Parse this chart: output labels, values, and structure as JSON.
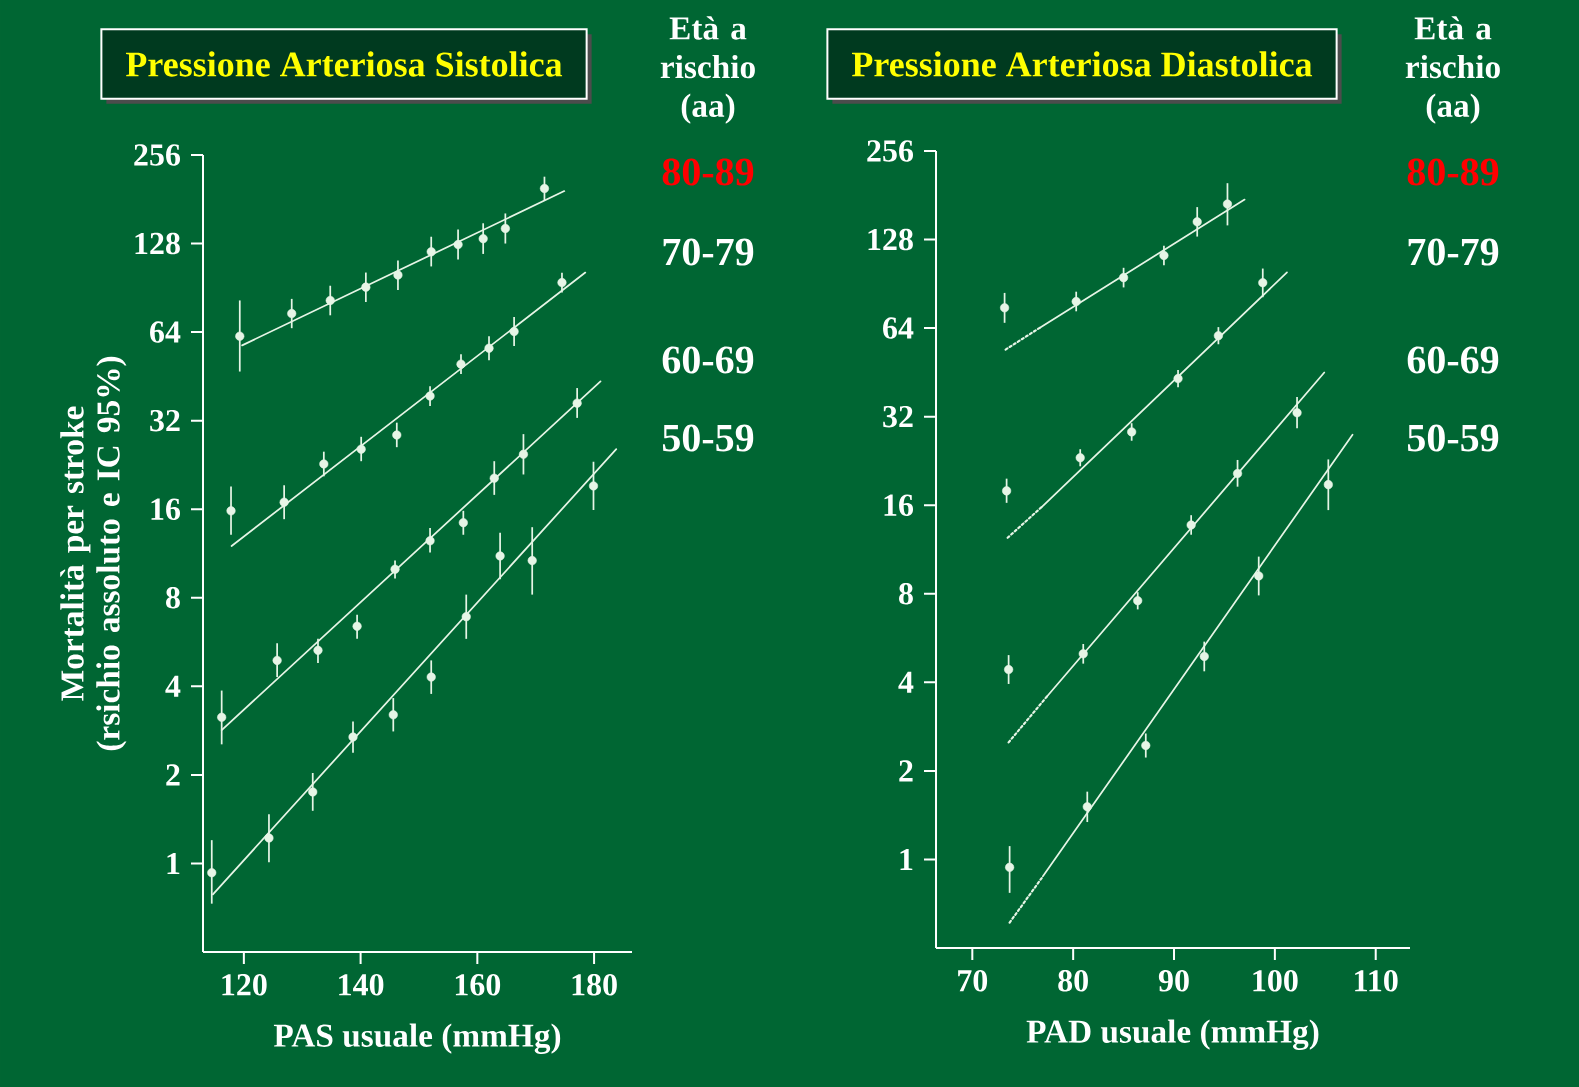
{
  "chart_data": [
    {
      "type": "scatter",
      "title": "Pressione Arteriosa Sistolica",
      "xlabel": "PAS usuale (mmHg)",
      "ylabel": "Mortalità per stroke (rsichio assoluto  e IC 95%)",
      "legend_title": "Età a rischio (aa)",
      "legend": "right",
      "log": "y",
      "xlim": [
        113,
        186.5
      ],
      "ylim": [
        0.5,
        256
      ],
      "xticks": [
        120,
        140,
        160,
        180
      ],
      "yticks": [
        1,
        2,
        4,
        8,
        16,
        32,
        64,
        128,
        256
      ],
      "series": [
        {
          "name": "80-89",
          "color": "#e6f5e6",
          "marker": "circle",
          "x": [
            119.3,
            128.2,
            134.8,
            140.9,
            146.4,
            152.1,
            156.7,
            161,
            164.8,
            171.5
          ],
          "values": [
            62,
            74,
            82,
            91,
            100,
            120,
            127,
            133,
            144,
            197
          ],
          "errors": [
            [
              47,
              82
            ],
            [
              66,
              83
            ],
            [
              73,
              92
            ],
            [
              81,
              102
            ],
            [
              89,
              112
            ],
            [
              107,
              135
            ],
            [
              113,
              143
            ],
            [
              118,
              150
            ],
            [
              128,
              162
            ],
            [
              179,
              216
            ]
          ]
        },
        {
          "name": "70-79",
          "color": "#e6f5e6",
          "marker": "circle",
          "x": [
            117.8,
            126.9,
            133.7,
            140.1,
            146.2,
            151.9,
            157.2,
            162,
            166.3,
            174.5
          ],
          "values": [
            15.8,
            16.9,
            22.8,
            25.6,
            28.6,
            38.8,
            49.8,
            56.4,
            64.3,
            94.3
          ],
          "errors": [
            [
              13.1,
              19.1
            ],
            [
              14.8,
              19.3
            ],
            [
              20.7,
              25.1
            ],
            [
              23.3,
              28.2
            ],
            [
              26,
              31.5
            ],
            [
              35.9,
              41.9
            ],
            [
              46.1,
              53.8
            ],
            [
              51.3,
              62
            ],
            [
              57.4,
              72
            ],
            [
              87.3,
              101.8
            ]
          ]
        },
        {
          "name": "60-69",
          "color": "#e6f5e6",
          "marker": "circle",
          "x": [
            116.2,
            125.7,
            132.7,
            139.4,
            145.9,
            151.9,
            157.6,
            162.9,
            167.9,
            177.1
          ],
          "values": [
            3.14,
            4.9,
            5.3,
            6.4,
            10.0,
            12.5,
            14.4,
            20.4,
            24.6,
            36.7
          ],
          "errors": [
            [
              2.54,
              3.87
            ],
            [
              4.3,
              5.6
            ],
            [
              4.8,
              5.8
            ],
            [
              5.8,
              7.0
            ],
            [
              9.3,
              10.7
            ],
            [
              11.4,
              13.8
            ],
            [
              13.1,
              15.8
            ],
            [
              17.9,
              23.3
            ],
            [
              21.0,
              28.8
            ],
            [
              32.7,
              41.3
            ]
          ]
        },
        {
          "name": "50-59",
          "color": "#e6f5e6",
          "marker": "circle",
          "x": [
            114.5,
            124.3,
            131.8,
            138.7,
            145.6,
            152.1,
            158.1,
            163.9,
            169.4,
            179.9
          ],
          "values": [
            0.93,
            1.22,
            1.75,
            2.69,
            3.2,
            4.3,
            6.9,
            11.1,
            10.7,
            19.2
          ],
          "errors": [
            [
              0.73,
              1.2
            ],
            [
              1.01,
              1.47
            ],
            [
              1.51,
              2.03
            ],
            [
              2.38,
              3.04
            ],
            [
              2.81,
              3.65
            ],
            [
              3.77,
              4.9
            ],
            [
              5.8,
              8.2
            ],
            [
              9.25,
              13.3
            ],
            [
              8.2,
              13.9
            ],
            [
              15.9,
              23.2
            ]
          ]
        },
        {
          "type": "line",
          "color": "#e6f5e6",
          "x": [
            119.7,
            174.9
          ],
          "values": [
            57.7,
            193
          ]
        },
        {
          "type": "line",
          "color": "#e6f5e6",
          "x": [
            117.9,
            178.5
          ],
          "values": [
            12.0,
            102
          ]
        },
        {
          "type": "line",
          "color": "#e6f5e6",
          "x": [
            116.2,
            181.1
          ],
          "values": [
            2.84,
            43.5
          ]
        },
        {
          "type": "line",
          "color": "#e6f5e6",
          "x": [
            114.7,
            183.8
          ],
          "values": [
            0.785,
            25.6
          ]
        }
      ]
    },
    {
      "type": "scatter",
      "title": "Pressione Arteriosa Diastolica",
      "xlabel": "PAD usuale (mmHg)",
      "legend_title": "Età a rischio (aa)",
      "legend": "right",
      "log": "y",
      "xlim": [
        66.4,
        113.4
      ],
      "ylim": [
        0.5,
        256
      ],
      "xticks": [
        70,
        80,
        90,
        100,
        110
      ],
      "yticks": [
        1,
        2,
        4,
        8,
        16,
        32,
        64,
        128,
        256
      ],
      "series": [
        {
          "name": "80-89",
          "color": "#e6f5e6",
          "marker": "circle",
          "x": [
            73.2,
            80.3,
            85.0,
            89.0,
            92.3,
            95.3
          ],
          "values": [
            75,
            78.8,
            95,
            113,
            147,
            169
          ],
          "errors": [
            [
              66.7,
              84.3
            ],
            [
              73,
              85.1
            ],
            [
              88,
              102.6
            ],
            [
              104.6,
              122
            ],
            [
              131,
              165
            ],
            [
              143,
              199
            ]
          ]
        },
        {
          "name": "70-79",
          "color": "#e6f5e6",
          "marker": "circle",
          "x": [
            73.4,
            80.7,
            85.8,
            90.4,
            94.4,
            98.8
          ],
          "values": [
            17.9,
            23.2,
            28.4,
            43.1,
            60.3,
            91.3
          ],
          "errors": [
            [
              16.3,
              19.7
            ],
            [
              21.7,
              24.8
            ],
            [
              26.5,
              30.4
            ],
            [
              40.3,
              46.1
            ],
            [
              56.4,
              64.5
            ],
            [
              81.5,
              102
            ]
          ]
        },
        {
          "name": "60-69",
          "color": "#e6f5e6",
          "marker": "circle",
          "x": [
            73.6,
            81.0,
            86.4,
            91.7,
            96.3,
            102.2
          ],
          "values": [
            4.42,
            5.0,
            7.58,
            13.7,
            20.5,
            33
          ],
          "errors": [
            [
              3.95,
              4.95
            ],
            [
              4.63,
              5.4
            ],
            [
              7.08,
              8.1
            ],
            [
              12.7,
              14.8
            ],
            [
              18.5,
              22.8
            ],
            [
              29.2,
              37.3
            ]
          ]
        },
        {
          "name": "50-59",
          "color": "#e6f5e6",
          "marker": "circle",
          "x": [
            73.7,
            81.4,
            87.2,
            93.0,
            98.4,
            105.3
          ],
          "values": [
            0.94,
            1.51,
            2.44,
            4.9,
            9.2,
            18.8
          ],
          "errors": [
            [
              0.77,
              1.11
            ],
            [
              1.34,
              1.7
            ],
            [
              2.22,
              2.68
            ],
            [
              4.36,
              5.5
            ],
            [
              7.9,
              10.7
            ],
            [
              15.4,
              22.9
            ]
          ]
        },
        {
          "type": "line",
          "color": "#e6f5e6",
          "x": [
            76.7,
            97.0
          ],
          "values": [
            64.2,
            175
          ]
        },
        {
          "type": "line",
          "color": "#e6f5e6",
          "line_style": "dotted",
          "x": [
            73.3,
            76.7
          ],
          "values": [
            54.1,
            64.2
          ]
        },
        {
          "type": "line",
          "color": "#e6f5e6",
          "x": [
            76.9,
            101.2
          ],
          "values": [
            15.8,
            99
          ]
        },
        {
          "type": "line",
          "color": "#e6f5e6",
          "line_style": "dotted",
          "x": [
            73.5,
            76.9
          ],
          "values": [
            12.4,
            15.8
          ]
        },
        {
          "type": "line",
          "color": "#e6f5e6",
          "x": [
            77.4,
            104.9
          ],
          "values": [
            3.58,
            45.2
          ]
        },
        {
          "type": "line",
          "color": "#e6f5e6",
          "line_style": "dotted",
          "x": [
            73.6,
            77.4
          ],
          "values": [
            2.5,
            3.58
          ]
        },
        {
          "type": "line",
          "color": "#e6f5e6",
          "x": [
            77.0,
            107.7
          ],
          "values": [
            0.876,
            27.8
          ]
        },
        {
          "type": "line",
          "color": "#e6f5e6",
          "line_style": "dotted",
          "x": [
            73.7,
            77.0
          ],
          "values": [
            0.61,
            0.876
          ]
        }
      ]
    }
  ]
}
